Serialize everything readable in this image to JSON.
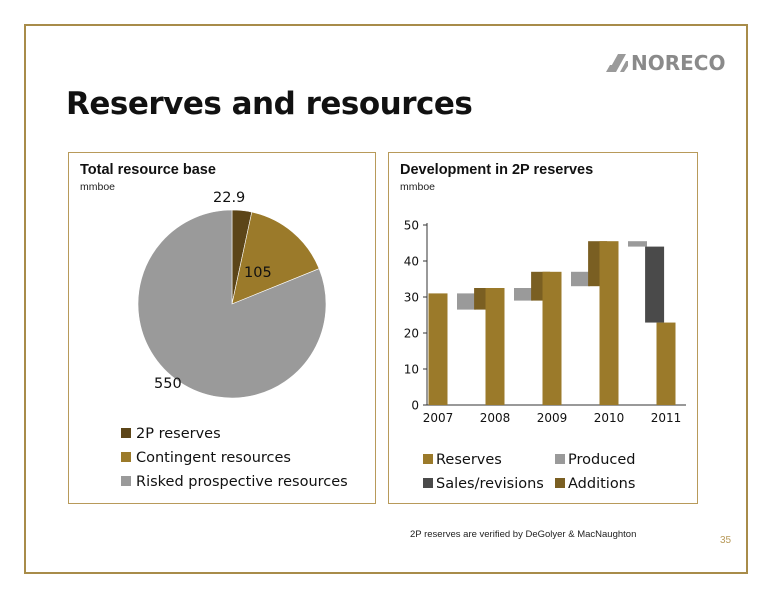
{
  "logo": {
    "text": "NORECO"
  },
  "title": "Reserves and resources",
  "colors": {
    "reserves": "#9b7a2a",
    "contingent": "#9b7a2a",
    "twop": "#5c4518",
    "prospective": "#9a9a9a",
    "produced": "#9a9a9a",
    "sales": "#4a4a4a",
    "additions": "#7a5f22",
    "frame": "#a88c4a"
  },
  "chart_data": [
    {
      "type": "pie",
      "title": "Total resource base",
      "unit": "mmboe",
      "slices": [
        {
          "label": "2P reserves",
          "value": 22.9,
          "value_label": "22.9",
          "color": "#5c4518"
        },
        {
          "label": "Contingent resources",
          "value": 105,
          "value_label": "105",
          "color": "#9b7a2a"
        },
        {
          "label": "Risked prospective resources",
          "value": 550,
          "value_label": "550",
          "color": "#9a9a9a"
        }
      ]
    },
    {
      "type": "bar",
      "subtype": "waterfall",
      "title": "Development in 2P reserves",
      "unit": "mmboe",
      "ylim": [
        0,
        50
      ],
      "yticks": [
        "0",
        "10",
        "20",
        "30",
        "40",
        "50"
      ],
      "categories": [
        "2007",
        "2008",
        "2009",
        "2010",
        "2011"
      ],
      "bars": [
        {
          "series": "Reserves",
          "position": 0,
          "low": 0,
          "high": 31
        },
        {
          "series": "Produced",
          "position": 0.5,
          "low": 26.5,
          "high": 31
        },
        {
          "series": "Additions",
          "position": 0.8,
          "low": 26.5,
          "high": 32.5
        },
        {
          "series": "Reserves",
          "position": 1,
          "low": 0,
          "high": 32.5
        },
        {
          "series": "Produced",
          "position": 1.5,
          "low": 29,
          "high": 32.5
        },
        {
          "series": "Additions",
          "position": 1.8,
          "low": 29,
          "high": 37
        },
        {
          "series": "Reserves",
          "position": 2,
          "low": 0,
          "high": 37
        },
        {
          "series": "Produced",
          "position": 2.5,
          "low": 33,
          "high": 37
        },
        {
          "series": "Additions",
          "position": 2.8,
          "low": 33,
          "high": 45.5
        },
        {
          "series": "Reserves",
          "position": 3,
          "low": 0,
          "high": 45.5
        },
        {
          "series": "Produced",
          "position": 3.5,
          "low": 44,
          "high": 45.5
        },
        {
          "series": "Sales/revisions",
          "position": 3.8,
          "low": 22.9,
          "high": 44
        },
        {
          "series": "Reserves",
          "position": 4,
          "low": 0,
          "high": 22.9
        }
      ],
      "legend": [
        {
          "label": "Reserves",
          "color": "#9b7a2a"
        },
        {
          "label": "Produced",
          "color": "#9a9a9a"
        },
        {
          "label": "Sales/revisions",
          "color": "#4a4a4a"
        },
        {
          "label": "Additions",
          "color": "#7a5f22"
        }
      ]
    }
  ],
  "footnote": "2P reserves are verified by DeGolyer & MacNaughton",
  "page_number": "35"
}
